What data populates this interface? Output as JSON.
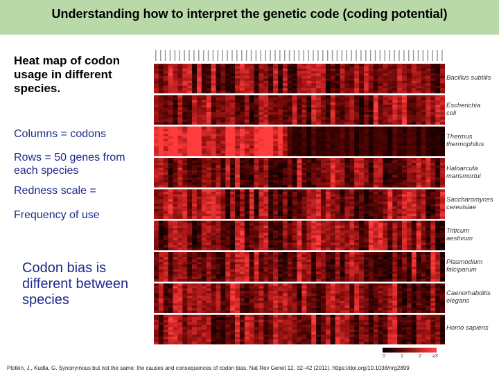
{
  "title": "Understanding how to interpret the genetic code (coding potential)",
  "left_text": {
    "heat_map_title": "Heat map of codon usage in different species.",
    "columns": "Columns = codons",
    "rows": "Rows = 50 genes from each species",
    "redness": "Redness scale =",
    "frequency": "Frequency of use",
    "bias": "Codon bias is different between species"
  },
  "species": [
    {
      "line1": "Bacillus subtilis",
      "line2": ""
    },
    {
      "line1": "Escherichia",
      "line2": "coli"
    },
    {
      "line1": "Thermus",
      "line2": "thermophilus"
    },
    {
      "line1": "Haloarcula",
      "line2": "marismortui"
    },
    {
      "line1": "Saccharomyces",
      "line2": "cerevisiae"
    },
    {
      "line1": "Triticum",
      "line2": "aestivum"
    },
    {
      "line1": "Plasmodium",
      "line2": "falciparum"
    },
    {
      "line1": "Caenorhabditis",
      "line2": "elegans"
    },
    {
      "line1": "Homo sapiens",
      "line2": ""
    }
  ],
  "scale": {
    "ticks": [
      "0",
      "1",
      "2",
      "≥3"
    ]
  },
  "citation": "Plotkin, J., Kudla, G. Synonymous but not the same: the causes and consequences of codon bias. Nat Rev Genet 12, 32–42 (2011). https://doi.org/10.1038/nrg2899",
  "colors": {
    "title_band": "#b9d9a9",
    "blue_text": "#1f2a8c",
    "heat_high": "#ff4444",
    "heat_low": "#000000"
  }
}
